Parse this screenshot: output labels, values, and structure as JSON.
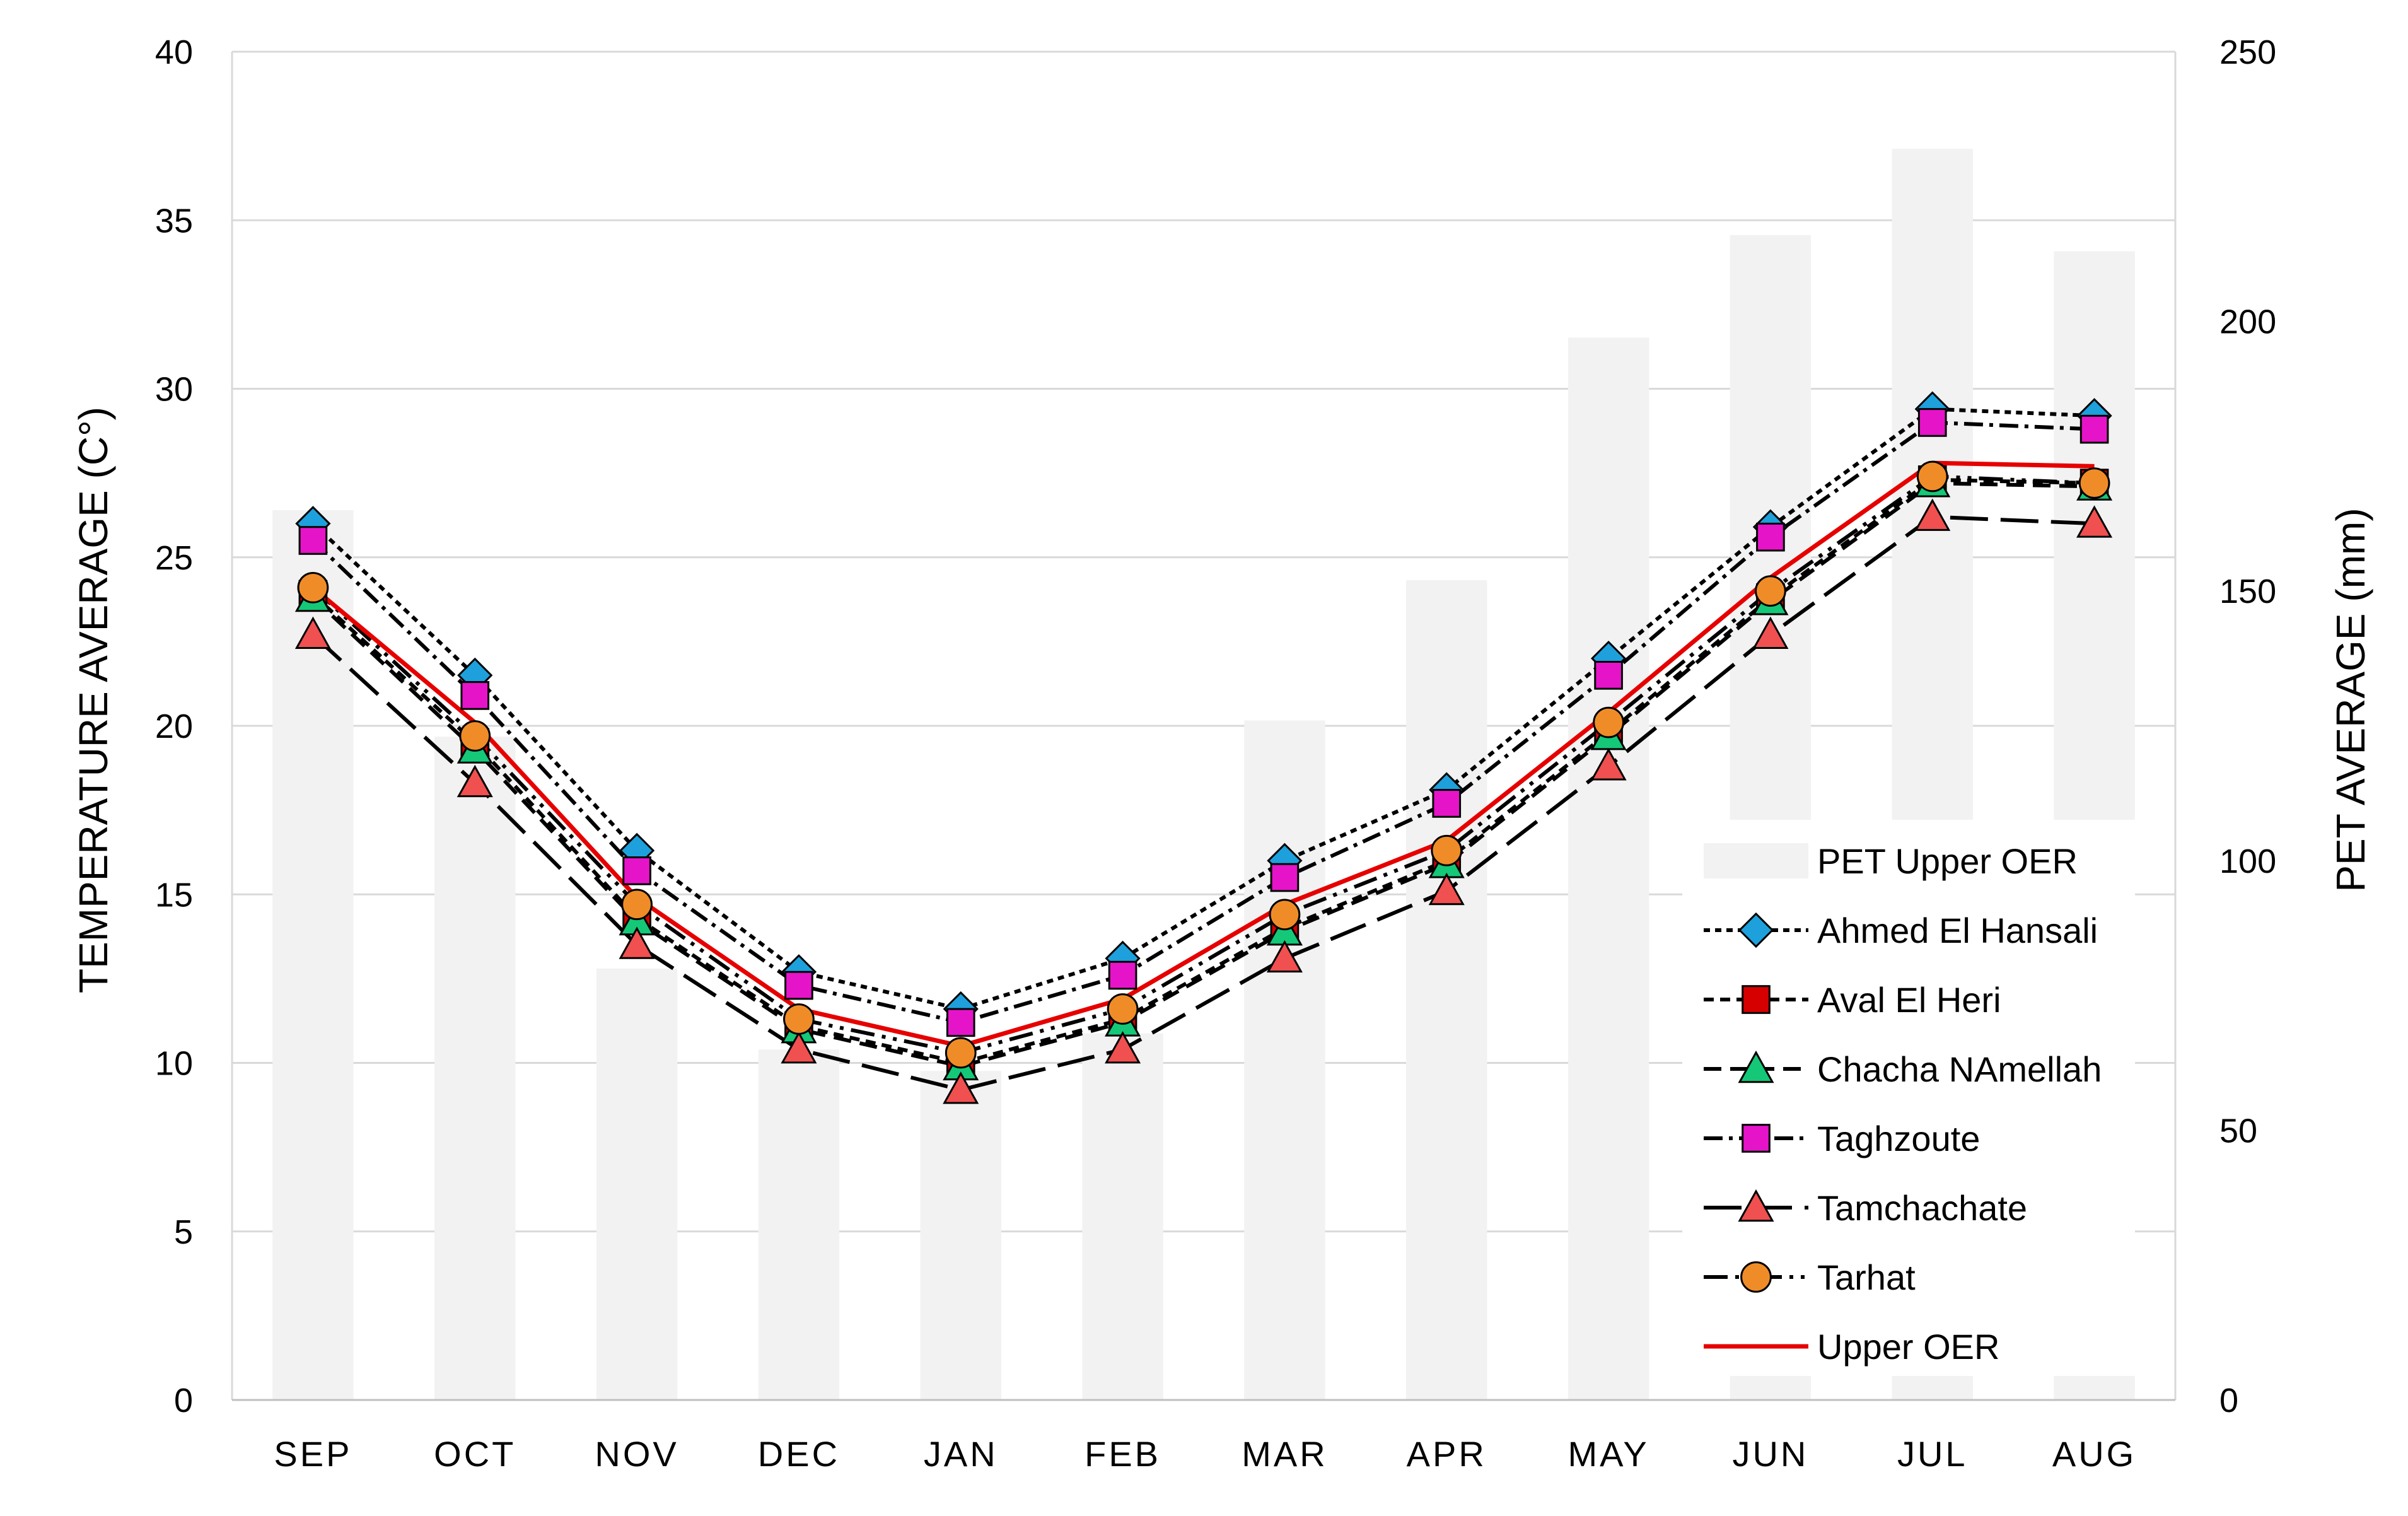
{
  "chart_data": {
    "type": "bar+line",
    "categories": [
      "SEP",
      "OCT",
      "NOV",
      "DEC",
      "JAN",
      "FEB",
      "MAR",
      "APR",
      "MAY",
      "JUN",
      "JUL",
      "AUG"
    ],
    "y_left": {
      "label": "TEMPERATURE AVERAGE (C°)",
      "min": 0,
      "max": 40,
      "step": 5
    },
    "y_right": {
      "label": "PET AVERAGE (mm)",
      "min": 0,
      "max": 250,
      "step": 50
    },
    "bars": {
      "name": "PET Upper OER",
      "axis": "right",
      "color": "#f2f2f2",
      "values": [
        165,
        123,
        80,
        65,
        61,
        68,
        126,
        152,
        197,
        216,
        232,
        213
      ]
    },
    "series": [
      {
        "name": "Ahmed El Hansali",
        "values": [
          26.0,
          21.5,
          16.3,
          12.7,
          11.6,
          13.1,
          16.0,
          18.1,
          22.0,
          25.9,
          29.4,
          29.2
        ],
        "line_color": "#000000",
        "dash": "10 8",
        "marker": "diamond",
        "marker_color": "#1ea0dc"
      },
      {
        "name": "Aval El Heri",
        "values": [
          23.9,
          19.5,
          14.3,
          11.1,
          10.0,
          11.3,
          14.0,
          16.0,
          19.8,
          23.8,
          27.3,
          27.2
        ],
        "line_color": "#000000",
        "dash": "16 10",
        "marker": "square",
        "marker_color": "#d60000"
      },
      {
        "name": "Chacha NAmellah",
        "values": [
          23.8,
          19.3,
          14.2,
          11.0,
          9.9,
          11.2,
          13.9,
          15.9,
          19.7,
          23.7,
          27.2,
          27.1
        ],
        "line_color": "#000000",
        "dash": "28 14",
        "marker": "triangle",
        "marker_color": "#14c878"
      },
      {
        "name": "Taghzoute",
        "values": [
          25.5,
          20.9,
          15.7,
          12.3,
          11.2,
          12.6,
          15.5,
          17.7,
          21.5,
          25.6,
          29.0,
          28.8
        ],
        "line_color": "#000000",
        "dash": "30 10 6 10",
        "marker": "square",
        "marker_color": "#e614c8"
      },
      {
        "name": "Tamchachate",
        "values": [
          22.7,
          18.3,
          13.5,
          10.4,
          9.2,
          10.4,
          13.1,
          15.1,
          18.8,
          22.7,
          26.2,
          26.0
        ],
        "line_color": "#000000",
        "dash": "60 20",
        "marker": "triangle",
        "marker_color": "#f05050"
      },
      {
        "name": "Tarhat",
        "values": [
          24.1,
          19.7,
          14.7,
          11.3,
          10.3,
          11.6,
          14.4,
          16.3,
          20.1,
          24.0,
          27.4,
          27.2
        ],
        "line_color": "#000000",
        "dash": "38 12 6 12 6 12",
        "marker": "circle",
        "marker_color": "#f08c28"
      },
      {
        "name": "Upper OER",
        "values": [
          24.1,
          20.1,
          14.9,
          11.6,
          10.5,
          11.9,
          14.7,
          16.6,
          20.4,
          24.4,
          27.8,
          27.7
        ],
        "line_color": "#e60000",
        "dash": "",
        "marker": "none",
        "marker_color": ""
      }
    ],
    "legend_position": "right",
    "grid": true
  }
}
